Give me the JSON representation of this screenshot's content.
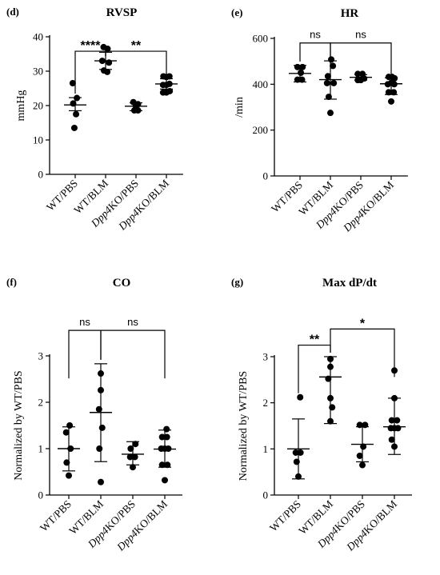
{
  "chart_data": [
    {
      "panel": "(d)",
      "type": "scatter",
      "title": "RVSP",
      "ylabel": "mmHg",
      "ylim": [
        0,
        40
      ],
      "yticks": [
        0,
        10,
        20,
        30,
        40
      ],
      "categories": [
        "WT/PBS",
        "WT/BLM",
        "Dpp4KO/PBS",
        "Dpp4KO/BLM"
      ],
      "italic_prefix": [
        null,
        null,
        "Dpp4",
        "Dpp4"
      ],
      "groups": [
        {
          "points": [
            [
              -0.15,
              26.5
            ],
            [
              0.1,
              22.2
            ],
            [
              -0.12,
              20.6
            ],
            [
              0.05,
              17.5
            ],
            [
              -0.05,
              13.5
            ]
          ],
          "mean": 20.2,
          "sd_low": 18.5,
          "sd_high": 22.3
        },
        {
          "points": [
            [
              -0.12,
              37.0
            ],
            [
              0.12,
              36.5
            ],
            [
              -0.2,
              33.0
            ],
            [
              0.2,
              32.5
            ],
            [
              -0.1,
              30.2
            ],
            [
              0.1,
              29.8
            ]
          ],
          "mean": 33.0,
          "sd_low": 30.5,
          "sd_high": 35.5
        },
        {
          "points": [
            [
              -0.16,
              21.0
            ],
            [
              0.12,
              20.4
            ],
            [
              0.0,
              19.8
            ],
            [
              -0.1,
              18.6
            ],
            [
              0.12,
              18.6
            ]
          ],
          "mean": 19.8,
          "sd_low": 18.5,
          "sd_high": 20.8
        },
        {
          "points": [
            [
              -0.18,
              28.5
            ],
            [
              0.0,
              28.3
            ],
            [
              0.18,
              28.5
            ],
            [
              -0.2,
              26.0
            ],
            [
              0.0,
              26.0
            ],
            [
              0.18,
              26.3
            ],
            [
              -0.2,
              23.8
            ],
            [
              0.0,
              23.8
            ],
            [
              0.2,
              24.2
            ]
          ],
          "mean": 26.3,
          "sd_low": 24.8,
          "sd_high": 27.8
        }
      ],
      "brackets": [
        {
          "from": 0,
          "to": 1,
          "label": "****",
          "y": 35.8,
          "drop": [
            30.0,
            37.5
          ]
        },
        {
          "from": 1,
          "to": 3,
          "label": "**",
          "y": 35.8,
          "drop": null,
          "drop_to": [
            37.5,
            29.5
          ]
        }
      ]
    },
    {
      "panel": "(e)",
      "type": "scatter",
      "title": "HR",
      "ylabel": "/min",
      "ylim": [
        0,
        600
      ],
      "yticks": [
        0,
        200,
        400,
        600
      ],
      "categories": [
        "WT/PBS",
        "WT/BLM",
        "Dpp4KO/PBS",
        "Dpp4KO/BLM"
      ],
      "italic_prefix": [
        null,
        null,
        "Dpp4",
        "Dpp4"
      ],
      "groups": [
        {
          "points": [
            [
              -0.15,
              475
            ],
            [
              0.15,
              475
            ],
            [
              0.05,
              450
            ],
            [
              -0.15,
              420
            ],
            [
              0.12,
              420
            ]
          ],
          "mean": 447,
          "sd_low": 410,
          "sd_high": 482
        },
        {
          "points": [
            [
              0.05,
              508
            ],
            [
              0.15,
              480
            ],
            [
              -0.15,
              435
            ],
            [
              -0.2,
              405
            ],
            [
              0.2,
              405
            ],
            [
              -0.1,
              345
            ],
            [
              0.0,
              275
            ]
          ],
          "mean": 420,
          "sd_low": 335,
          "sd_high": 502
        },
        {
          "points": [
            [
              -0.18,
              445
            ],
            [
              0.1,
              445
            ],
            [
              0.2,
              425
            ],
            [
              -0.18,
              418
            ],
            [
              0.0,
              418
            ]
          ],
          "mean": 430,
          "sd_low": 418,
          "sd_high": 442
        },
        {
          "points": [
            [
              -0.15,
              432
            ],
            [
              0.05,
              432
            ],
            [
              0.2,
              426
            ],
            [
              -0.2,
              400
            ],
            [
              0.0,
              406
            ],
            [
              0.18,
              400
            ],
            [
              -0.15,
              365
            ],
            [
              0.15,
              365
            ],
            [
              0.0,
              325
            ]
          ],
          "mean": 402,
          "sd_low": 355,
          "sd_high": 428
        }
      ],
      "brackets": [
        {
          "from": 0,
          "to": 1,
          "label": "ns",
          "y": 580
        },
        {
          "from": 1,
          "to": 3,
          "label": "ns",
          "y": 580
        }
      ]
    },
    {
      "panel": "(f)",
      "type": "scatter",
      "title": "CO",
      "ylabel": "Normalized by WT/PBS",
      "ylim": [
        0,
        3
      ],
      "yticks": [
        0,
        1,
        2,
        3
      ],
      "categories": [
        "WT/PBS",
        "WT/BLM",
        "Dpp4KO/PBS",
        "Dpp4KO/BLM"
      ],
      "italic_prefix": [
        null,
        null,
        "Dpp4",
        "Dpp4"
      ],
      "groups": [
        {
          "points": [
            [
              0.05,
              1.5
            ],
            [
              -0.15,
              1.35
            ],
            [
              0.1,
              1.0
            ],
            [
              -0.12,
              0.7
            ],
            [
              0.0,
              0.42
            ]
          ],
          "mean": 1.0,
          "sd_low": 0.52,
          "sd_high": 1.47
        },
        {
          "points": [
            [
              0.0,
              2.62
            ],
            [
              0.0,
              2.26
            ],
            [
              -0.1,
              1.85
            ],
            [
              0.08,
              1.45
            ],
            [
              -0.08,
              1.0
            ],
            [
              0.0,
              0.28
            ]
          ],
          "mean": 1.78,
          "sd_low": 0.72,
          "sd_high": 2.83
        },
        {
          "points": [
            [
              -0.12,
              1.0
            ],
            [
              0.15,
              1.1
            ],
            [
              -0.15,
              0.82
            ],
            [
              0.12,
              0.82
            ],
            [
              0.0,
              0.6
            ]
          ],
          "mean": 0.88,
          "sd_low": 0.65,
          "sd_high": 1.15
        },
        {
          "points": [
            [
              0.1,
              1.42
            ],
            [
              -0.15,
              1.25
            ],
            [
              0.12,
              1.25
            ],
            [
              -0.2,
              1.0
            ],
            [
              0.0,
              1.0
            ],
            [
              0.2,
              1.0
            ],
            [
              -0.15,
              0.65
            ],
            [
              0.15,
              0.65
            ],
            [
              0.0,
              0.32
            ]
          ],
          "mean": 0.99,
          "sd_low": 0.6,
          "sd_high": 1.4
        }
      ],
      "brackets": [
        {
          "from": 0,
          "to": 1,
          "label": "ns",
          "y": 3.55
        },
        {
          "from": 1,
          "to": 3,
          "label": "ns",
          "y": 3.55
        }
      ]
    },
    {
      "panel": "(g)",
      "type": "scatter",
      "title": "Max dP/dt",
      "ylabel": "Normalized by WT/PBS",
      "ylim": [
        0,
        3
      ],
      "yticks": [
        0,
        1,
        2,
        3
      ],
      "categories": [
        "WT/PBS",
        "WT/BLM",
        "Dpp4KO/PBS",
        "Dpp4KO/BLM"
      ],
      "italic_prefix": [
        null,
        null,
        "Dpp4",
        "Dpp4"
      ],
      "groups": [
        {
          "points": [
            [
              0.1,
              2.12
            ],
            [
              -0.15,
              0.92
            ],
            [
              0.12,
              0.92
            ],
            [
              -0.1,
              0.72
            ],
            [
              0.0,
              0.4
            ]
          ],
          "mean": 1.0,
          "sd_low": 0.35,
          "sd_high": 1.65
        },
        {
          "points": [
            [
              0.0,
              2.95
            ],
            [
              0.0,
              2.78
            ],
            [
              -0.12,
              2.52
            ],
            [
              0.0,
              2.1
            ],
            [
              0.1,
              1.9
            ],
            [
              0.0,
              1.6
            ]
          ],
          "mean": 2.56,
          "sd_low": 1.55,
          "sd_high": 3.0
        },
        {
          "points": [
            [
              -0.15,
              1.52
            ],
            [
              0.15,
              1.52
            ],
            [
              0.05,
              1.05
            ],
            [
              -0.15,
              0.85
            ],
            [
              0.0,
              0.65
            ]
          ],
          "mean": 1.1,
          "sd_low": 0.72,
          "sd_high": 1.48
        },
        {
          "points": [
            [
              0.0,
              2.7
            ],
            [
              0.0,
              2.1
            ],
            [
              -0.15,
              1.62
            ],
            [
              0.15,
              1.62
            ],
            [
              -0.2,
              1.45
            ],
            [
              0.0,
              1.45
            ],
            [
              0.2,
              1.45
            ],
            [
              -0.15,
              1.2
            ],
            [
              0.0,
              1.05
            ]
          ],
          "mean": 1.48,
          "sd_low": 0.88,
          "sd_high": 2.1
        }
      ],
      "brackets": [
        {
          "from": 0,
          "to": 1,
          "label": "**",
          "y": 3.25
        },
        {
          "from": 1,
          "to": 3,
          "label": "*",
          "y": 3.6
        }
      ]
    }
  ]
}
